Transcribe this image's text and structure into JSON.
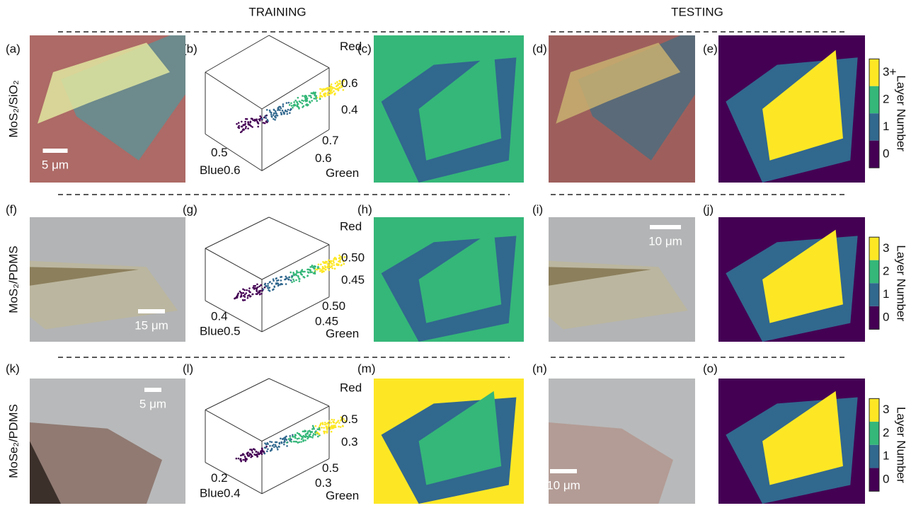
{
  "headers": {
    "training": "TRAINING",
    "testing": "TESTING"
  },
  "rows": [
    {
      "material": "MoS₂/SiO₂",
      "panels": [
        "(a)",
        "(b)",
        "(c)",
        "(d)",
        "(e)"
      ],
      "scale_bars": [
        "5 μm"
      ],
      "scatter": {
        "red_label": "Red",
        "blue_label": "Blue",
        "green_label": "Green",
        "red_ticks": [
          "0.6",
          "0.4"
        ],
        "blue_ticks": [
          "0.5",
          "0.6"
        ],
        "green_ticks": [
          "0.7",
          "0.6"
        ]
      },
      "colorbar": {
        "ticks": [
          "3+",
          "2",
          "1",
          "0"
        ],
        "label": "Layer Number"
      }
    },
    {
      "material": "MoS₂/PDMS",
      "panels": [
        "(f)",
        "(g)",
        "(h)",
        "(i)",
        "(j)"
      ],
      "scale_bars": [
        "15 μm",
        "10 μm"
      ],
      "scatter": {
        "red_label": "Red",
        "blue_label": "Blue",
        "green_label": "Green",
        "red_ticks": [
          "0.50",
          "0.45"
        ],
        "blue_ticks": [
          "0.4",
          "0.5"
        ],
        "green_ticks": [
          "0.50",
          "0.45"
        ]
      },
      "colorbar": {
        "ticks": [
          "3",
          "2",
          "1",
          "0"
        ],
        "label": "Layer Number"
      }
    },
    {
      "material": "MoSe₂/PDMS",
      "panels": [
        "(k)",
        "(l)",
        "(m)",
        "(n)",
        "(o)"
      ],
      "scale_bars": [
        "5 μm",
        "10 μm"
      ],
      "scatter": {
        "red_label": "Red",
        "blue_label": "Blue",
        "green_label": "Green",
        "red_ticks": [
          "0.5",
          "0.3"
        ],
        "blue_ticks": [
          "0.2",
          "0.4"
        ],
        "green_ticks": [
          "0.5",
          "0.3"
        ]
      },
      "colorbar": {
        "ticks": [
          "3",
          "2",
          "1",
          "0"
        ],
        "label": "Layer Number"
      }
    }
  ]
}
